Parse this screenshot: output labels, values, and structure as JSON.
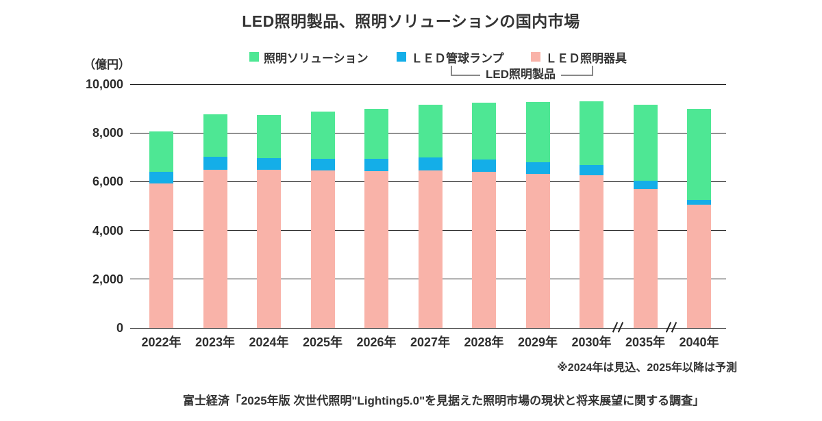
{
  "title": "LED照明製品、照明ソリューションの国内市場",
  "y_axis_unit": "（億円）",
  "note": "※2024年は見込、2025年以降は予測",
  "source": "富士経済「2025年版 次世代照明\"Lighting5.0\"を見据えた照明市場の現状と将来展望に関する調査」",
  "legend": {
    "items": [
      {
        "label": "照明ソリューション",
        "color": "#4EE794"
      },
      {
        "label": "ＬＥＤ管球ランプ",
        "color": "#14AEE8"
      },
      {
        "label": "ＬＥＤ照明器具",
        "color": "#F9B3A9"
      }
    ],
    "bracket_label": "LED照明製品"
  },
  "chart_data": {
    "type": "bar",
    "stacked": true,
    "title": "LED照明製品、照明ソリューションの国内市場",
    "ylabel": "（億円）",
    "ylim": [
      0,
      10000
    ],
    "ytick_interval": 2000,
    "yticks": [
      "0",
      "2,000",
      "4,000",
      "6,000",
      "8,000",
      "10,000"
    ],
    "grid": "horizontal",
    "legend_position": "top",
    "categories": [
      "2022年",
      "2023年",
      "2024年",
      "2025年",
      "2026年",
      "2027年",
      "2028年",
      "2029年",
      "2030年",
      "2035年",
      "2040年"
    ],
    "series": [
      {
        "name": "ＬＥＤ照明器具",
        "color": "#F9B3A9",
        "values": [
          5940,
          6500,
          6490,
          6450,
          6440,
          6450,
          6400,
          6330,
          6270,
          5700,
          5070
        ]
      },
      {
        "name": "ＬＥＤ管球ランプ",
        "color": "#14AEE8",
        "values": [
          470,
          530,
          490,
          500,
          500,
          550,
          510,
          470,
          410,
          350,
          180
        ]
      },
      {
        "name": "照明ソリューション",
        "color": "#4EE794",
        "values": [
          1650,
          1740,
          1770,
          1940,
          2060,
          2150,
          2340,
          2480,
          2620,
          3120,
          3730
        ]
      }
    ],
    "totals": [
      8060,
      8770,
      8750,
      8890,
      9000,
      9150,
      9250,
      9280,
      9300,
      9170,
      8980
    ],
    "axis_breaks_after": [
      "2030年",
      "2035年"
    ]
  }
}
